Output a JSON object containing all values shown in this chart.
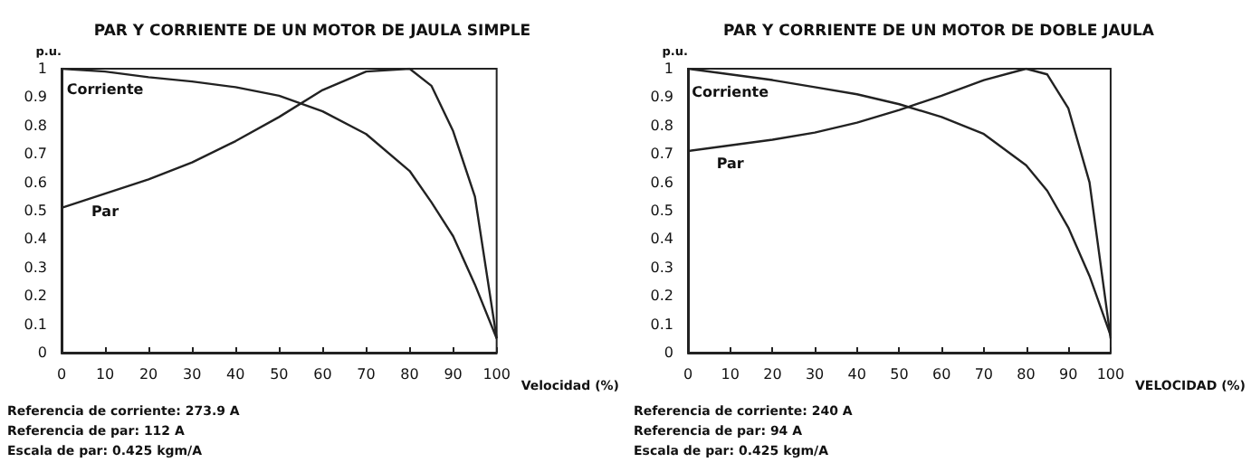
{
  "chart_data": [
    {
      "type": "line",
      "title": "PAR Y CORRIENTE DE UN MOTOR DE JAULA SIMPLE",
      "xlabel": "Velocidad (%)",
      "ylabel": "p.u.",
      "x": [
        0,
        10,
        20,
        30,
        40,
        50,
        60,
        70,
        80,
        85,
        90,
        95,
        100
      ],
      "series": [
        {
          "name": "Corriente",
          "color": "#222222",
          "values": [
            1.0,
            0.99,
            0.97,
            0.955,
            0.935,
            0.905,
            0.85,
            0.77,
            0.64,
            0.53,
            0.41,
            0.24,
            0.05
          ]
        },
        {
          "name": "Par",
          "color": "#222222",
          "values": [
            0.51,
            0.56,
            0.61,
            0.67,
            0.745,
            0.83,
            0.925,
            0.99,
            1.0,
            0.94,
            0.78,
            0.55,
            0.05
          ]
        }
      ],
      "xlim": [
        0,
        100
      ],
      "xticks": [
        0,
        10,
        20,
        30,
        40,
        50,
        60,
        70,
        80,
        90,
        100
      ],
      "ylim": [
        0,
        1
      ],
      "yticks": [
        0,
        0.1,
        0.2,
        0.3,
        0.4,
        0.5,
        0.6,
        0.7,
        0.8,
        0.9,
        1
      ],
      "grid": false,
      "legend": false,
      "annotations": [
        "Referencia de corriente: 273.9 A",
        "Referencia de par: 112 A",
        "Escala de par: 0.425 kgm/A"
      ]
    },
    {
      "type": "line",
      "title": "PAR Y CORRIENTE DE UN MOTOR DE DOBLE JAULA",
      "xlabel": "VELOCIDAD (%)",
      "ylabel": "p.u.",
      "x": [
        0,
        10,
        20,
        30,
        40,
        50,
        60,
        70,
        80,
        85,
        90,
        95,
        100
      ],
      "series": [
        {
          "name": "Corriente",
          "color": "#222222",
          "values": [
            1.0,
            0.98,
            0.96,
            0.935,
            0.91,
            0.875,
            0.83,
            0.77,
            0.66,
            0.57,
            0.44,
            0.27,
            0.06
          ]
        },
        {
          "name": "Par",
          "color": "#222222",
          "values": [
            0.71,
            0.73,
            0.75,
            0.775,
            0.81,
            0.855,
            0.905,
            0.96,
            1.0,
            0.98,
            0.86,
            0.6,
            0.05
          ]
        }
      ],
      "xlim": [
        0,
        100
      ],
      "xticks": [
        0,
        10,
        20,
        30,
        40,
        50,
        60,
        70,
        80,
        90,
        100
      ],
      "ylim": [
        0,
        1
      ],
      "yticks": [
        0,
        0.1,
        0.2,
        0.3,
        0.4,
        0.5,
        0.6,
        0.7,
        0.8,
        0.9,
        1
      ],
      "grid": false,
      "legend": false,
      "annotations": [
        "Referencia de corriente: 240 A",
        "Referencia de par: 94 A",
        "Escala de par: 0.425 kgm/A"
      ]
    }
  ]
}
